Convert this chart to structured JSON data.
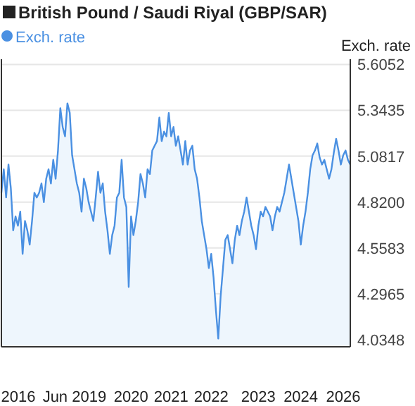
{
  "chart_data": {
    "type": "area",
    "title": "British Pound / Saudi Riyal (GBP/SAR)",
    "ylabel": "Exch. rate",
    "series": [
      {
        "name": "Exch. rate",
        "color": "#4a90e2",
        "values": [
          4.873,
          5.007,
          4.846,
          5.034,
          4.899,
          4.658,
          4.738,
          4.685,
          4.765,
          4.524,
          4.712,
          4.658,
          4.577,
          4.712,
          4.873,
          4.846,
          4.873,
          4.926,
          4.819,
          4.953,
          5.007,
          4.926,
          5.061,
          4.953,
          5.114,
          5.356,
          5.248,
          5.195,
          5.383,
          5.329,
          5.087,
          5.007,
          4.926,
          4.873,
          4.765,
          4.953,
          4.899,
          4.819,
          4.765,
          4.712,
          4.846,
          4.993,
          4.873,
          4.926,
          4.765,
          4.658,
          4.524,
          4.631,
          4.685,
          4.846,
          4.873,
          5.061,
          4.846,
          4.792,
          4.336,
          4.738,
          4.631,
          4.712,
          4.819,
          4.98,
          4.926,
          4.846,
          5.007,
          4.98,
          5.114,
          5.141,
          5.168,
          5.302,
          5.168,
          5.222,
          5.195,
          5.329,
          5.195,
          5.248,
          5.141,
          5.195,
          5.114,
          5.034,
          5.168,
          5.034,
          5.114,
          5.141,
          5.007,
          4.953,
          4.846,
          4.712,
          4.631,
          4.551,
          4.443,
          4.524,
          4.39,
          4.202,
          4.041,
          4.282,
          4.443,
          4.604,
          4.631,
          4.551,
          4.47,
          4.604,
          4.685,
          4.631,
          4.712,
          4.765,
          4.846,
          4.765,
          4.685,
          4.631,
          4.551,
          4.685,
          4.765,
          4.738,
          4.792,
          4.765,
          4.738,
          4.658,
          4.738,
          4.792,
          4.765,
          4.819,
          4.873,
          4.953,
          5.034,
          4.953,
          4.873,
          4.792,
          4.712,
          4.577,
          4.685,
          4.765,
          4.873,
          5.007,
          5.087,
          5.114,
          5.154,
          5.074,
          5.034,
          5.061,
          5.007,
          4.953,
          5.007,
          5.101,
          5.181,
          5.114,
          5.034,
          5.087,
          5.114,
          5.061,
          5.034
        ]
      }
    ],
    "categories": [
      null,
      null,
      null,
      null,
      null,
      null,
      "2016",
      null,
      null,
      null,
      null,
      null,
      null,
      null,
      null,
      null,
      null,
      null,
      null,
      null,
      null,
      null,
      null,
      null,
      null,
      null,
      null,
      null,
      null,
      null,
      null,
      "Jun 2019",
      null,
      null,
      null,
      null,
      null,
      null,
      null,
      null,
      null,
      null,
      null,
      null,
      null,
      null,
      null,
      null,
      null,
      null,
      null,
      null,
      null,
      null,
      null,
      "2020",
      null,
      null,
      null,
      null,
      null,
      null,
      null,
      null,
      null,
      null,
      null,
      null,
      null,
      null,
      null,
      null,
      "2021",
      null,
      null,
      null,
      null,
      null,
      null,
      null,
      null,
      null,
      null,
      null,
      null,
      null,
      null,
      null,
      null,
      "2022",
      null,
      null,
      null,
      null,
      null,
      null,
      null,
      null,
      null,
      null,
      null,
      null,
      null,
      null,
      null,
      null,
      null,
      null,
      null,
      "2023",
      null,
      null,
      null,
      null,
      null,
      null,
      null,
      null,
      null,
      null,
      null,
      null,
      null,
      null,
      null,
      null,
      null,
      "2024",
      null,
      null,
      null,
      null,
      null,
      null,
      null,
      null,
      null,
      null,
      null,
      null,
      null,
      null,
      null,
      null,
      null,
      "2026",
      null,
      null,
      null
    ],
    "ylim": [
      3.994,
      5.635
    ],
    "yticks": [
      4.0348,
      4.2965,
      4.5583,
      {
        "value": 4.82,
        "label": "4.8200"
      },
      5.0817,
      5.3435,
      5.6052
    ],
    "grid": "y",
    "legend": "top left"
  }
}
